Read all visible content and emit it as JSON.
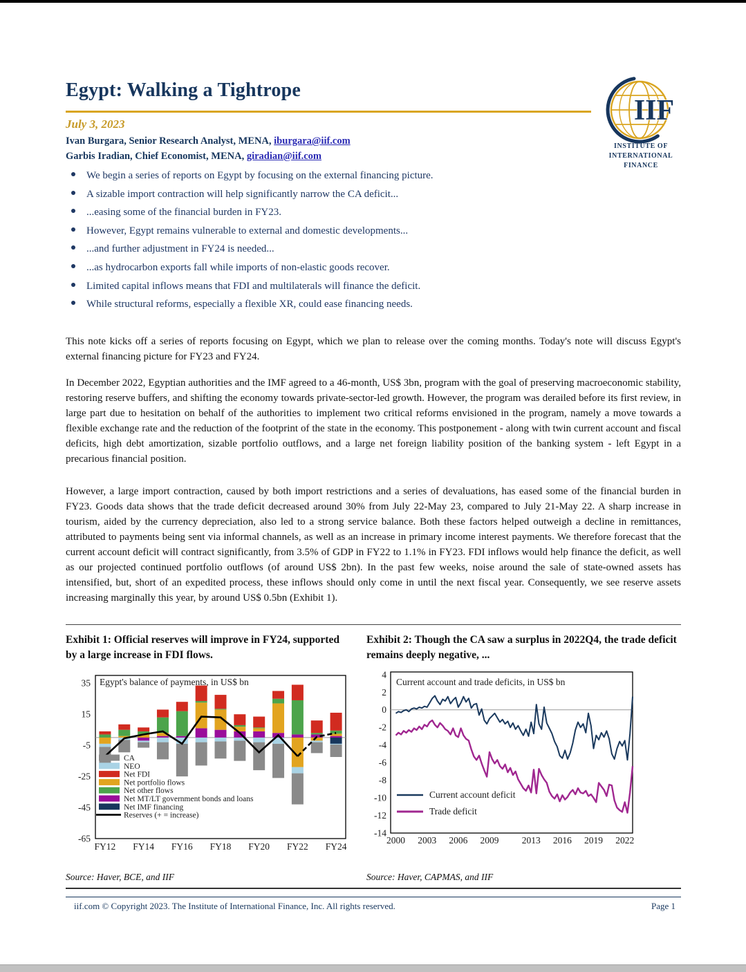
{
  "header": {
    "title": "Egypt: Walking a Tightrope",
    "date": "July 3, 2023",
    "authors": [
      {
        "prefix": "Ivan Burgara, Senior Research Analyst, MENA, ",
        "email": "iburgara@iif.com"
      },
      {
        "prefix": "Garbis Iradian, Chief Economist, MENA, ",
        "email": "giradian@iif.com"
      }
    ]
  },
  "logo": {
    "acronym": "IIF",
    "org_lines": [
      "Institute of",
      "International",
      "Finance"
    ]
  },
  "bullets": [
    "We begin a series of reports on Egypt by focusing on the external financing picture.",
    "A sizable import contraction will help significantly narrow the CA deficit...",
    "...easing some of the financial burden in FY23.",
    "However, Egypt remains vulnerable to external and domestic developments...",
    "...and further adjustment in FY24 is needed...",
    "...as hydrocarbon exports fall while imports of non-elastic goods recover.",
    "Limited capital inflows means that FDI and multilaterals will finance the deficit.",
    "While structural reforms, especially a flexible XR, could ease financing needs."
  ],
  "paragraphs": [
    "This note kicks off a series of reports focusing on Egypt, which we plan to release over the coming months. Today's note will discuss Egypt's external financing picture for FY23 and FY24.",
    "In December 2022, Egyptian authorities and the IMF agreed to a 46-month, US$ 3bn, program with the goal of preserving macroeconomic stability, restoring reserve buffers, and shifting the economy towards private-sector-led growth. However, the program was derailed before its first review, in large part due to hesitation on behalf of the authorities to implement two critical reforms envisioned in the program, namely a move towards a flexible exchange rate and the reduction of the footprint of the state in the economy. This postponement - along with twin current account and fiscal deficits, high debt amortization, sizable portfolio outflows, and a large net foreign liability position of the banking system - left Egypt in a precarious financial position.",
    "However, a large import contraction, caused by both import restrictions and a series of devaluations, has eased some of the financial burden in FY23. Goods data shows that the trade deficit decreased around 30% from July 22-May 23, compared to July 21-May 22. A sharp increase in tourism, aided by the currency depreciation, also led to a strong service balance. Both these factors helped outweigh a decline in remittances, attributed to payments being sent via informal channels, as well as an increase in primary income interest payments. We therefore forecast that the current account deficit will contract significantly, from 3.5% of GDP in FY22 to 1.1% in FY23. FDI inflows would help finance the deficit, as well as our projected continued portfolio outflows (of around US$ 2bn). In the past few weeks, noise around the sale of state-owned assets has intensified, but, short of an expedited process, these inflows should only come in until the next fiscal year. Consequently, we see reserve assets increasing marginally this year, by around US$ 0.5bn (Exhibit 1)."
  ],
  "exhibits": {
    "exhibit1_heading": "Exhibit 1: Official reserves will improve in FY24, supported by a large increase in FDI flows.",
    "exhibit2_heading": "Exhibit 2: Though the CA saw a surplus in 2022Q4, the trade deficit remains deeply negative, ...",
    "exhibit1_source": "Source: Haver, BCE, and IIF",
    "exhibit2_source": "Source: Haver, CAPMAS, and IIF"
  },
  "footer": {
    "copyright": "iif.com © Copyright 2023. The Institute of International Finance, Inc. All rights reserved.",
    "page_number": "Page 1"
  },
  "colors": {
    "title_navy": "#17365d",
    "gold": "#d9a521",
    "bullet_navy": "#1f3864",
    "link_blue": "#2b2bb4",
    "footer_navy": "#17365d"
  },
  "chart_data": [
    {
      "type": "bar",
      "title": "Egypt's balance of payments, in US$ bn",
      "categories": [
        "FY12",
        "FY13",
        "FY14",
        "FY15",
        "FY16",
        "FY17",
        "FY18",
        "FY19",
        "FY20",
        "FY21",
        "FY22",
        "FY23",
        "FY24"
      ],
      "yticks": [
        35,
        15,
        -5,
        -25,
        -45,
        -65
      ],
      "ylim": [
        -65,
        40
      ],
      "xtick_labels": [
        "FY12",
        "FY14",
        "FY16",
        "FY18",
        "FY20",
        "FY22",
        "FY24"
      ],
      "grid": "zero-line-only",
      "legend_position": "inside-lower-left",
      "series": [
        {
          "key": "ca",
          "name": "CA",
          "color": "#8a8a8a",
          "values": [
            -11,
            -8,
            -3.5,
            -11,
            -21,
            -15,
            -11,
            -13,
            -18,
            -22,
            -20,
            -7,
            -8
          ]
        },
        {
          "key": "neo",
          "name": "NEO",
          "color": "#a9d3e5",
          "values": [
            -2,
            -1.5,
            -1,
            -3,
            -4,
            -3,
            -2.5,
            -2,
            -3,
            -4,
            -4,
            -1,
            -0.5
          ]
        },
        {
          "key": "fdi",
          "name": "Net FDI",
          "color": "#d12b20",
          "values": [
            2,
            3.5,
            2.5,
            5,
            6,
            10,
            9,
            7,
            7,
            5,
            10,
            8,
            11.5
          ]
        },
        {
          "key": "portfolio",
          "name": "Net portfolio flows",
          "color": "#e2a41f",
          "values": [
            -4,
            1,
            2,
            2,
            0,
            16.5,
            13,
            3,
            2,
            19,
            -19,
            -2,
            1.5
          ]
        },
        {
          "key": "other",
          "name": "Net other flows",
          "color": "#4ca44b",
          "values": [
            2,
            4,
            2,
            10,
            16,
            1,
            0.5,
            1,
            0.5,
            3,
            22,
            1,
            2
          ]
        },
        {
          "key": "mtlt",
          "name": "Net MT/LT government bonds and loans",
          "color": "#9a0d9a",
          "values": [
            0,
            0,
            -2,
            1,
            1,
            6,
            5,
            4,
            4,
            3,
            2,
            2,
            1
          ]
        },
        {
          "key": "imf",
          "name": "Net IMF financing",
          "color": "#16365c",
          "values": [
            0,
            0,
            0,
            0,
            0,
            0,
            0,
            0,
            0,
            0,
            0,
            0,
            -4
          ]
        }
      ],
      "stack_order_positive": [
        "ca",
        "neo",
        "imf",
        "mtlt",
        "portfolio",
        "other",
        "fdi"
      ],
      "stack_order_negative": [
        "mtlt",
        "portfolio",
        "imf",
        "neo",
        "ca",
        "other",
        "fdi"
      ],
      "line_series": {
        "name": "Reserves (+ = increase)",
        "color": "#000000",
        "values": [
          -12,
          -0.5,
          2,
          4,
          -4,
          13.5,
          13,
          3,
          -9.5,
          1.5,
          -12,
          0.5,
          3
        ],
        "dashed_from_index": 10
      }
    },
    {
      "type": "line",
      "title": "Current account and trade deficits, in US$ bn",
      "x_start": 2000,
      "x_step_years": 0.25,
      "yticks": [
        4,
        2,
        0,
        -2,
        -4,
        -6,
        -8,
        -10,
        -12,
        -14
      ],
      "ylim": [
        -14,
        4.3
      ],
      "xticks": [
        2000,
        2003,
        2006,
        2009,
        2013,
        2016,
        2019,
        2022
      ],
      "grid": "zero-line-only",
      "legend_position": "inside-lower-left",
      "series": [
        {
          "name": "Current account deficit",
          "color": "#1b3a5e",
          "width": 2,
          "values": [
            -0.4,
            -0.2,
            -0.3,
            -0.1,
            0.0,
            -0.2,
            0.1,
            0.2,
            0.1,
            0.3,
            0.2,
            0.4,
            0.3,
            0.8,
            1.3,
            1.6,
            1.0,
            0.6,
            1.2,
            1.0,
            1.5,
            0.7,
            1.1,
            1.4,
            0.3,
            0.8,
            1.5,
            0.9,
            1.3,
            0.2,
            0.6,
            0.7,
            -0.6,
            0.1,
            -1.2,
            -1.6,
            -1.0,
            -0.7,
            -0.4,
            -0.9,
            -1.4,
            -1.1,
            -1.6,
            -1.3,
            -2.0,
            -1.5,
            -2.2,
            -1.8,
            -2.4,
            -2.9,
            -2.2,
            -3.0,
            -1.4,
            -2.7,
            0.6,
            -1.6,
            -2.2,
            0.3,
            -1.5,
            -2.1,
            -2.7,
            -3.6,
            -4.2,
            -5.2,
            -5.5,
            -4.6,
            -5.6,
            -4.9,
            -3.8,
            -2.3,
            -1.4,
            -2.0,
            -1.6,
            -2.6,
            -0.4,
            -1.8,
            -4.4,
            -2.9,
            -3.4,
            -2.6,
            -3.1,
            -2.4,
            -3.3,
            -5.0,
            -5.6,
            -4.4,
            -3.6,
            -4.1,
            -3.5,
            -5.7,
            -2.7,
            1.5
          ]
        },
        {
          "name": "Trade deficit",
          "color": "#a02790",
          "width": 2.4,
          "values": [
            -2.9,
            -2.6,
            -2.8,
            -2.4,
            -2.6,
            -2.3,
            -2.5,
            -2.1,
            -2.3,
            -1.9,
            -2.2,
            -1.7,
            -1.9,
            -1.4,
            -1.2,
            -1.7,
            -2.0,
            -1.5,
            -1.8,
            -2.2,
            -2.4,
            -2.8,
            -2.1,
            -2.9,
            -3.1,
            -2.1,
            -2.9,
            -3.3,
            -3.5,
            -4.5,
            -5.3,
            -5.7,
            -5.2,
            -6.1,
            -6.9,
            -7.6,
            -4.8,
            -5.6,
            -6.1,
            -5.7,
            -6.4,
            -6.7,
            -6.2,
            -7.1,
            -6.6,
            -7.4,
            -7.0,
            -7.9,
            -8.4,
            -8.9,
            -9.2,
            -8.6,
            -9.4,
            -6.8,
            -9.5,
            -6.7,
            -7.4,
            -7.9,
            -8.3,
            -9.3,
            -9.8,
            -10.1,
            -9.6,
            -10.4,
            -9.7,
            -10.2,
            -9.9,
            -9.4,
            -9.1,
            -9.6,
            -8.9,
            -9.4,
            -9.5,
            -9.2,
            -9.8,
            -9.6,
            -10.0,
            -10.5,
            -8.3,
            -8.7,
            -9.1,
            -9.8,
            -8.5,
            -8.6,
            -10.3,
            -11.1,
            -11.4,
            -11.6,
            -10.5,
            -11.7,
            -9.4,
            -6.4
          ]
        }
      ]
    }
  ]
}
